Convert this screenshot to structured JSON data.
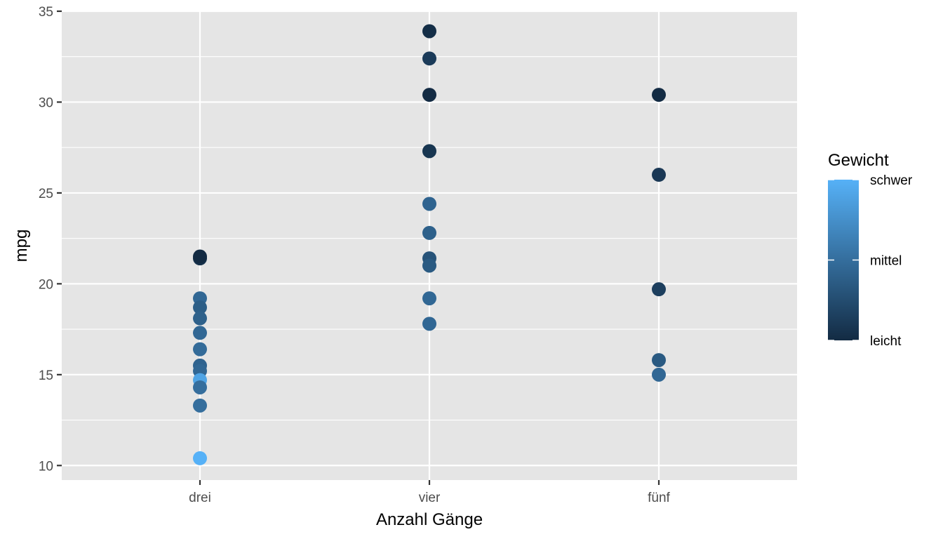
{
  "chart_data": {
    "type": "scatter",
    "title": "",
    "xlabel": "Anzahl Gänge",
    "ylabel": "mpg",
    "categories": [
      "drei",
      "vier",
      "fünf"
    ],
    "ylim": [
      9.2,
      35
    ],
    "yticks": [
      10,
      15,
      20,
      25,
      30,
      35
    ],
    "grid": true,
    "background": "#e5e5e5",
    "legend": {
      "title": "Gewicht",
      "position": "right",
      "labels": [
        "schwer",
        "mittel",
        "leicht"
      ],
      "gradient": [
        "#56b1f7",
        "#132b43"
      ]
    },
    "points": [
      {
        "x": "drei",
        "y": 21.4,
        "weight": 0.05
      },
      {
        "x": "drei",
        "y": 21.5,
        "weight": 0.0
      },
      {
        "x": "drei",
        "y": 19.2,
        "weight": 0.45
      },
      {
        "x": "drei",
        "y": 18.7,
        "weight": 0.38
      },
      {
        "x": "drei",
        "y": 18.1,
        "weight": 0.4
      },
      {
        "x": "drei",
        "y": 17.3,
        "weight": 0.45
      },
      {
        "x": "drei",
        "y": 16.4,
        "weight": 0.48
      },
      {
        "x": "drei",
        "y": 15.5,
        "weight": 0.42
      },
      {
        "x": "drei",
        "y": 15.2,
        "weight": 0.45
      },
      {
        "x": "drei",
        "y": 14.7,
        "weight": 0.9
      },
      {
        "x": "drei",
        "y": 14.3,
        "weight": 0.5
      },
      {
        "x": "drei",
        "y": 13.3,
        "weight": 0.5
      },
      {
        "x": "drei",
        "y": 10.4,
        "weight": 1.0
      },
      {
        "x": "vier",
        "y": 33.9,
        "weight": 0.02
      },
      {
        "x": "vier",
        "y": 32.4,
        "weight": 0.12
      },
      {
        "x": "vier",
        "y": 30.4,
        "weight": 0.0
      },
      {
        "x": "vier",
        "y": 27.3,
        "weight": 0.08
      },
      {
        "x": "vier",
        "y": 24.4,
        "weight": 0.42
      },
      {
        "x": "vier",
        "y": 22.8,
        "weight": 0.4
      },
      {
        "x": "vier",
        "y": 21.4,
        "weight": 0.3
      },
      {
        "x": "vier",
        "y": 21.0,
        "weight": 0.35
      },
      {
        "x": "vier",
        "y": 19.2,
        "weight": 0.45
      },
      {
        "x": "vier",
        "y": 17.8,
        "weight": 0.45
      },
      {
        "x": "fünf",
        "y": 30.4,
        "weight": 0.0
      },
      {
        "x": "fünf",
        "y": 26.0,
        "weight": 0.1
      },
      {
        "x": "fünf",
        "y": 19.7,
        "weight": 0.15
      },
      {
        "x": "fünf",
        "y": 15.8,
        "weight": 0.35
      },
      {
        "x": "fünf",
        "y": 15.0,
        "weight": 0.45
      }
    ]
  }
}
